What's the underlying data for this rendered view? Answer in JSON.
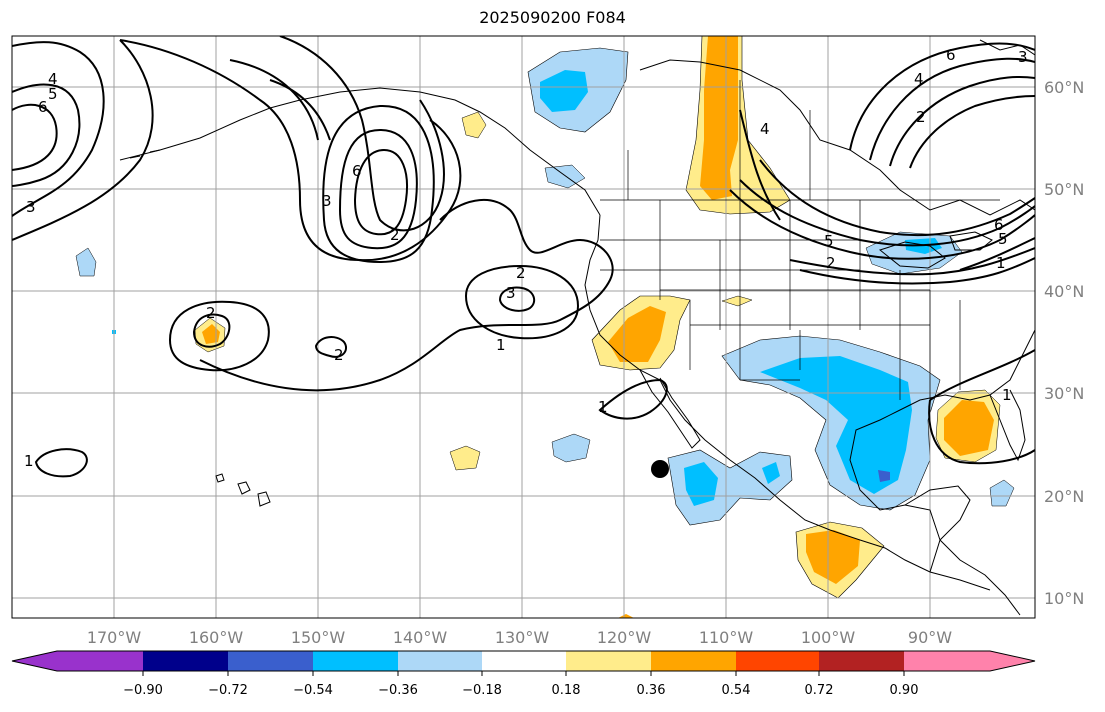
{
  "title": "2025090200 F084",
  "lat_labels": [
    "60°N",
    "50°N",
    "40°N",
    "30°N",
    "20°N",
    "10°N"
  ],
  "lon_labels": [
    "170°W",
    "160°W",
    "150°W",
    "140°W",
    "130°W",
    "120°W",
    "110°W",
    "100°W",
    "90°W"
  ],
  "contour_labels": [
    "4",
    "5",
    "6",
    "3",
    "6",
    "3",
    "2",
    "2",
    "3",
    "2",
    "1",
    "1",
    "1",
    "2",
    "5",
    "4",
    "6",
    "5",
    "2",
    "1",
    "1",
    "6",
    "4",
    "3",
    "2"
  ],
  "colorbar": {
    "colors": [
      "#9932cc",
      "#00008b",
      "#3a5fcd",
      "#00bfff",
      "#add8f7",
      "#ffffff",
      "#ffec8b",
      "#ffa500",
      "#ff4500",
      "#b22222",
      "#ff82ab"
    ],
    "tick_labels": [
      "−0.90",
      "−0.72",
      "−0.54",
      "−0.36",
      "−0.18",
      "0.18",
      "0.36",
      "0.54",
      "0.72",
      "0.90"
    ]
  },
  "colors": {
    "light_blue": "#add8f7",
    "blue": "#00bfff",
    "dark_blue": "#3a5fcd",
    "light_yellow": "#ffec8b",
    "orange": "#ffa500",
    "grid": "#a0a0a0",
    "coast": "#000000"
  }
}
